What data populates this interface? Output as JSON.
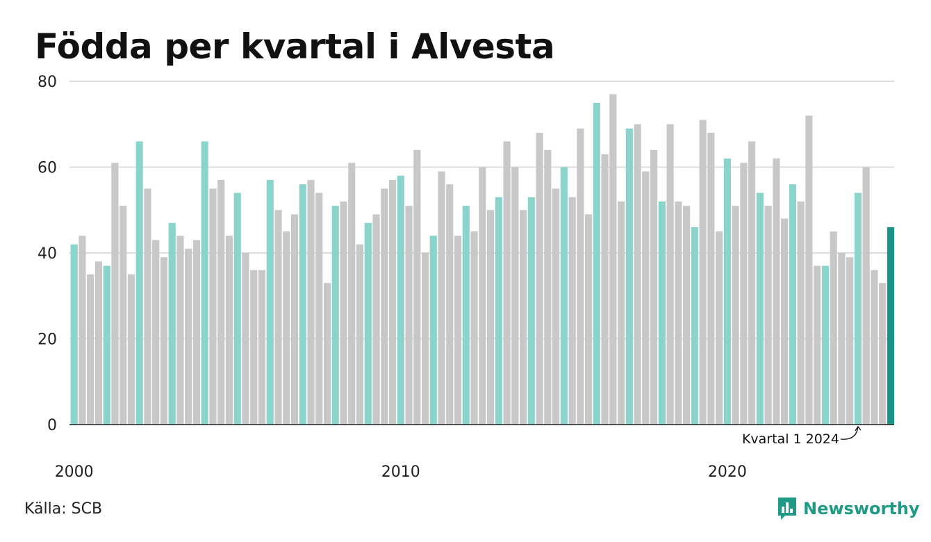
{
  "title": "Födda per kvartal i Alvesta",
  "source": "Källa: SCB",
  "logo": {
    "text": "Newsworthy",
    "icon": "chart-bubble-icon",
    "color": "#1f9a85"
  },
  "colors": {
    "q1": "#8bd4cc",
    "other": "#c8c8c8",
    "highlight": "#1a9484",
    "grid": "#dddddd",
    "axis": "#222222"
  },
  "chart_data": {
    "type": "bar",
    "title": "Födda per kvartal i Alvesta",
    "xlabel": "",
    "ylabel": "",
    "ylim": [
      0,
      80
    ],
    "yticks": [
      0,
      20,
      40,
      60,
      80
    ],
    "xtick_labels": [
      "2000",
      "2010",
      "2020"
    ],
    "start_year": 2000,
    "grid": true,
    "annotation": {
      "text": "Kvartal 1 2024",
      "target_period": "2024 Q1"
    },
    "values": [
      42,
      44,
      35,
      38,
      37,
      61,
      51,
      35,
      66,
      55,
      43,
      39,
      47,
      44,
      41,
      43,
      66,
      55,
      57,
      44,
      54,
      40,
      36,
      36,
      57,
      50,
      45,
      49,
      56,
      57,
      54,
      33,
      51,
      52,
      61,
      42,
      47,
      49,
      55,
      57,
      58,
      51,
      64,
      40,
      44,
      59,
      56,
      44,
      51,
      45,
      60,
      50,
      53,
      66,
      60,
      50,
      53,
      68,
      64,
      55,
      60,
      53,
      69,
      49,
      75,
      63,
      77,
      52,
      69,
      70,
      59,
      64,
      52,
      70,
      52,
      51,
      46,
      71,
      68,
      45,
      62,
      51,
      61,
      66,
      54,
      51,
      62,
      48,
      56,
      52,
      72,
      37,
      37,
      45,
      40,
      39,
      54,
      60,
      36,
      33,
      46
    ]
  }
}
